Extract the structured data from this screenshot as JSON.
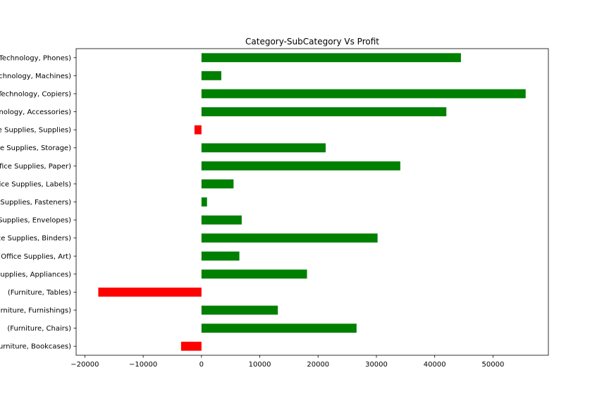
{
  "chart_data": {
    "type": "bar",
    "orientation": "horizontal",
    "title": "Category-SubCategory Vs Profit",
    "xlabel": "",
    "ylabel": "",
    "xlim": [
      -21500,
      59500
    ],
    "xticks": [
      -20000,
      -10000,
      0,
      10000,
      20000,
      30000,
      40000,
      50000
    ],
    "xtick_labels": [
      "−20000",
      "−10000",
      "0",
      "10000",
      "20000",
      "30000",
      "40000",
      "50000"
    ],
    "grid": false,
    "positive_color": "#008000",
    "negative_color": "#ff0000",
    "categories": [
      "(Furniture, Bookcases)",
      "(Furniture, Chairs)",
      "(Furniture, Furnishings)",
      "(Furniture, Tables)",
      "(Office Supplies, Appliances)",
      "(Office Supplies, Art)",
      "(Office Supplies, Binders)",
      "(Office Supplies, Envelopes)",
      "(Office Supplies, Fasteners)",
      "(Office Supplies, Labels)",
      "(Office Supplies, Paper)",
      "(Office Supplies, Storage)",
      "(Office Supplies, Supplies)",
      "(Technology, Accessories)",
      "(Technology, Copiers)",
      "(Technology, Machines)",
      "(Technology, Phones)"
    ],
    "values": [
      -3500,
      26600,
      13100,
      -17700,
      18100,
      6500,
      30200,
      6900,
      950,
      5500,
      34100,
      21300,
      -1200,
      42000,
      55600,
      3400,
      44500
    ]
  }
}
